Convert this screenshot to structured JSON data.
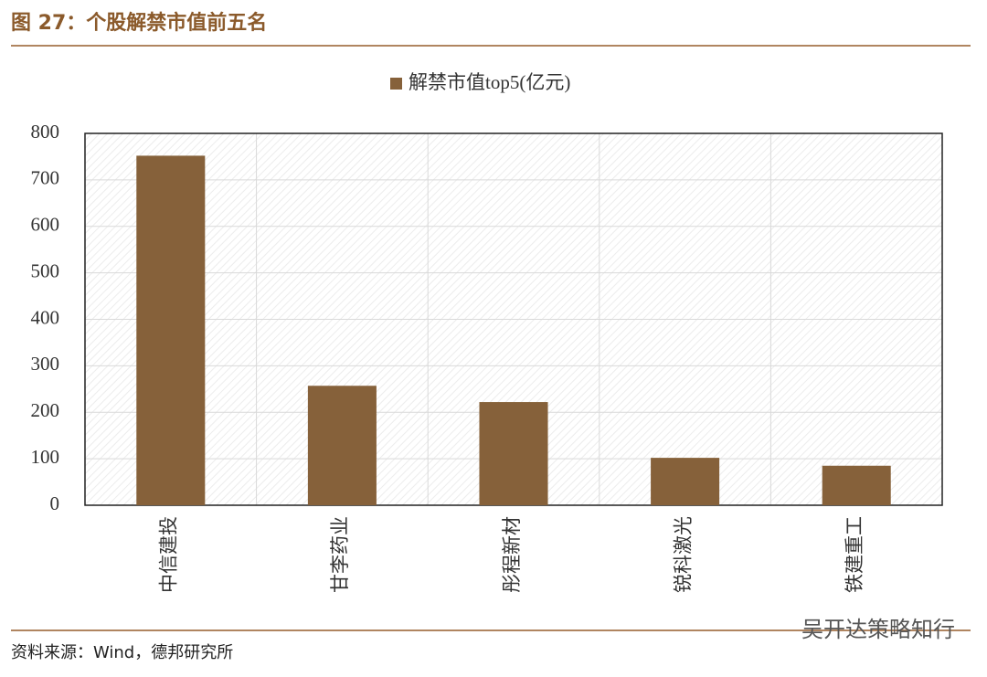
{
  "header": {
    "title": "图 27：个股解禁市值前五名"
  },
  "chart_data": {
    "type": "bar",
    "categories": [
      "中信建投",
      "甘李药业",
      "彤程新材",
      "锐科激光",
      "铁建重工"
    ],
    "series": [
      {
        "name": "解禁市值top5(亿元)",
        "color": "#86613a",
        "values": [
          752,
          257,
          222,
          102,
          85
        ]
      }
    ],
    "ylim": [
      0,
      800
    ],
    "yticks": [
      0,
      100,
      200,
      300,
      400,
      500,
      600,
      700,
      800
    ],
    "grid": true,
    "legend": "top"
  },
  "footer": {
    "source": "资料来源：Wind，德邦研究所",
    "watermark": "吴开达策略知行"
  }
}
